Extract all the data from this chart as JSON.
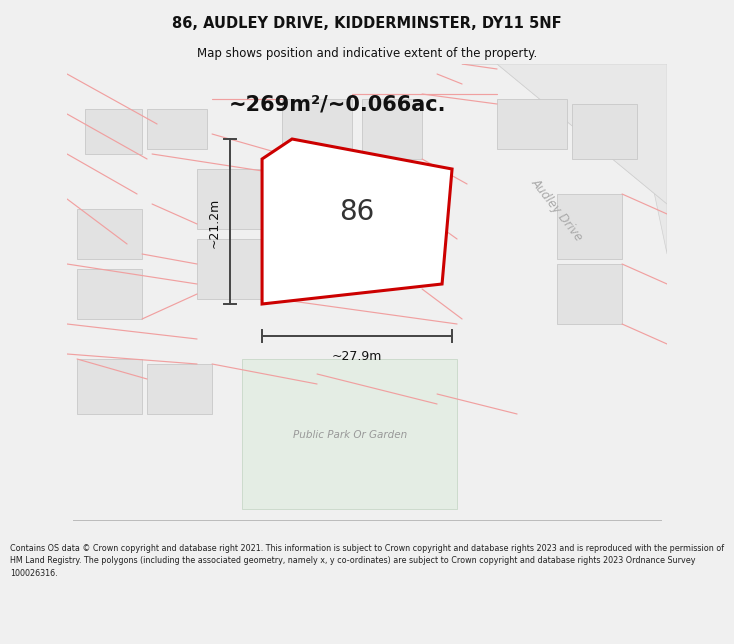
{
  "title": "86, AUDLEY DRIVE, KIDDERMINSTER, DY11 5NF",
  "subtitle": "Map shows position and indicative extent of the property.",
  "area_label": "~269m²/~0.066ac.",
  "property_number": "86",
  "dim_width": "~27.9m",
  "dim_height": "~21.2m",
  "road_label": "Audley Drive",
  "park_label": "Public Park Or Garden",
  "footer": "Contains OS data © Crown copyright and database right 2021. This information is subject to Crown copyright and database rights 2023 and is reproduced with the permission of\nHM Land Registry. The polygons (including the associated geometry, namely x, y co-ordinates) are subject to Crown copyright and database rights 2023 Ordnance Survey\n100026316.",
  "bg_color": "#f0f0f0",
  "map_bg": "#ffffff",
  "property_fill": "#ffffff",
  "property_edge": "#cc0000",
  "building_fill": "#e2e2e2",
  "building_edge": "#c8c8c8",
  "street_line_color": "#f0a0a0",
  "park_fill": "#e4ede4",
  "park_edge": "#c8d8c8",
  "dim_line_color": "#444444",
  "road_fill": "#e8e8e8",
  "road_edge": "#d0d0d0"
}
